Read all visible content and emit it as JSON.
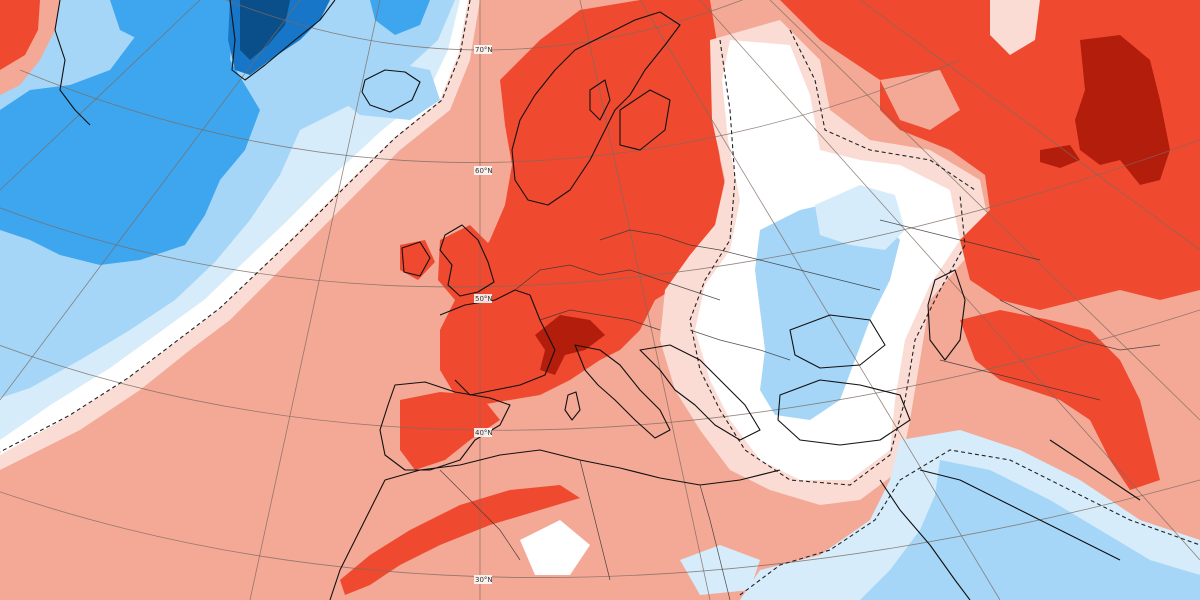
{
  "map": {
    "title": "",
    "projection": "polar-stereographic",
    "region": "Europe, North Atlantic, North Africa, Middle East",
    "colors": {
      "anomaly_plus_3": "#b31d0c",
      "anomaly_plus_2": "#ef4a30",
      "anomaly_plus_1": "#f4a896",
      "anomaly_plus_0_5": "#fadcd4",
      "anomaly_zero": "#ffffff",
      "anomaly_minus_0_5": "#d6ecfb",
      "anomaly_minus_1": "#a6d6f7",
      "anomaly_minus_2": "#3ea6ee",
      "anomaly_minus_3": "#1876c8",
      "anomaly_minus_4": "#0b4f8a",
      "coastline": "#111111",
      "graticule": "#7a6a60"
    },
    "latitude_labels": [
      "70°N",
      "60°N",
      "50°N",
      "40°N",
      "30°N"
    ],
    "zero_contour_style": "dashed"
  }
}
